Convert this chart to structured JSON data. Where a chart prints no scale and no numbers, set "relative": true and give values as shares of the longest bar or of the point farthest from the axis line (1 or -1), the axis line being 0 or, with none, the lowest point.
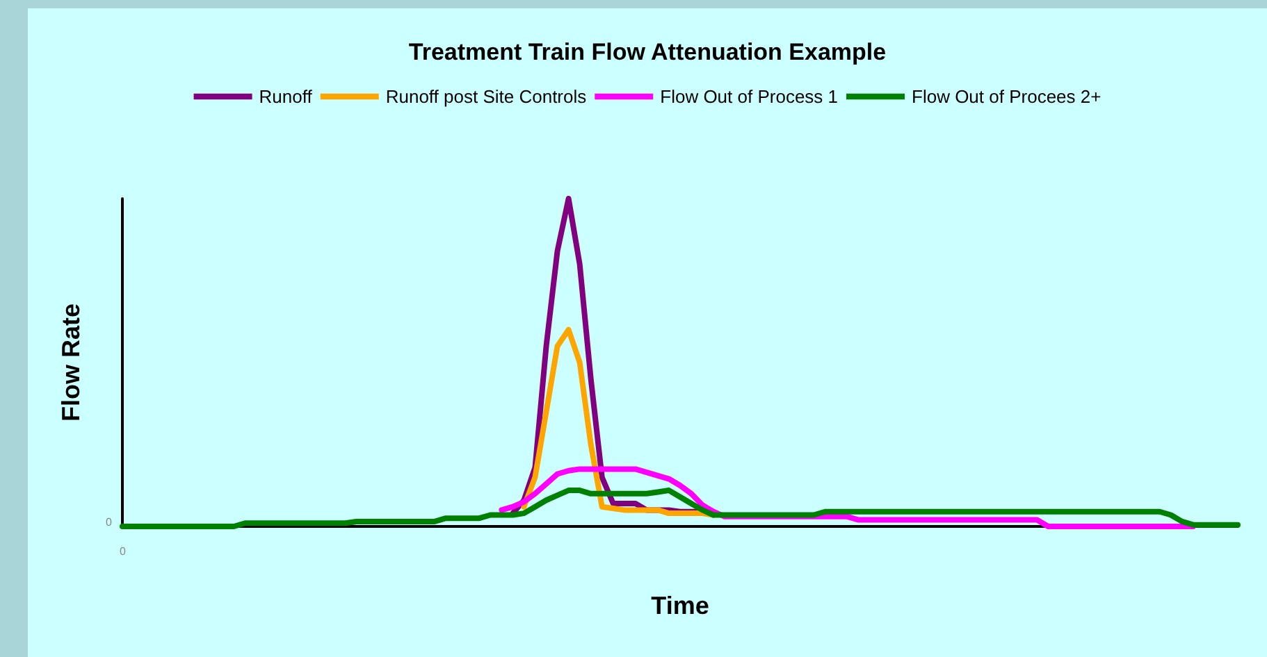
{
  "chart_data": {
    "type": "line",
    "title": "Treatment Train Flow Attenuation Example",
    "xlabel": "Time",
    "ylabel": "Flow Rate",
    "relative": true,
    "legend": "top",
    "grid": false,
    "marker": "none",
    "line_style": "solid",
    "annotations": [
      "0",
      "0"
    ],
    "categories": [
      null,
      null,
      null,
      null,
      null,
      null,
      null,
      null,
      null,
      null,
      null,
      null,
      null,
      null,
      null,
      null,
      null,
      null,
      null,
      null,
      null,
      null,
      null,
      null,
      null,
      null,
      null,
      null,
      null,
      null,
      null,
      null,
      null,
      null,
      null,
      null,
      null,
      null,
      null,
      null,
      null,
      null,
      null,
      null,
      null,
      null,
      null,
      null,
      null,
      null,
      null,
      null,
      null,
      null,
      null,
      null,
      null,
      null,
      null,
      null,
      null,
      null,
      null,
      null,
      null,
      null,
      null,
      null,
      null,
      null,
      null,
      null,
      null,
      null,
      null,
      null,
      null,
      null,
      null,
      null,
      null,
      null,
      null,
      null,
      null,
      null,
      null,
      null,
      null,
      null,
      null,
      null,
      null,
      null,
      null,
      null,
      null,
      null,
      null,
      null,
      null
    ],
    "series": [
      {
        "name": "Runoff",
        "color": "#800080",
        "values": [
          null,
          null,
          null,
          null,
          null,
          null,
          null,
          null,
          null,
          null,
          null,
          null,
          null,
          null,
          null,
          null,
          null,
          null,
          null,
          null,
          null,
          null,
          null,
          null,
          null,
          null,
          null,
          null,
          null,
          null,
          null,
          null,
          null,
          null,
          null,
          0.04,
          0.08,
          0.18,
          0.55,
          0.84,
          1,
          0.8,
          0.45,
          0.15,
          0.07,
          0.07,
          0.07,
          0.05,
          0.05,
          0.05,
          0.045,
          0.045,
          0.045,
          0.035,
          null,
          null,
          null,
          null,
          null,
          null,
          null,
          null,
          null,
          null,
          null,
          null,
          null,
          null,
          null,
          null,
          null,
          null,
          null,
          null,
          null,
          null,
          null,
          null,
          null,
          null,
          null,
          null,
          null,
          null,
          null,
          null,
          null,
          null,
          null,
          null,
          null,
          null,
          null,
          null,
          null,
          null,
          null,
          null,
          null,
          null,
          null
        ]
      },
      {
        "name": "Runoff post Site Controls",
        "color": "#ffa500",
        "values": [
          null,
          null,
          null,
          null,
          null,
          null,
          null,
          null,
          null,
          null,
          null,
          null,
          null,
          null,
          null,
          null,
          null,
          null,
          null,
          null,
          null,
          null,
          null,
          null,
          null,
          null,
          null,
          null,
          null,
          null,
          null,
          null,
          null,
          null,
          null,
          null,
          0.06,
          0.15,
          0.35,
          0.55,
          0.6,
          0.5,
          0.25,
          0.06,
          0.055,
          0.05,
          0.05,
          0.05,
          0.05,
          0.04,
          0.04,
          0.04,
          0.04,
          0.035,
          null,
          null,
          null,
          null,
          null,
          null,
          null,
          null,
          null,
          null,
          null,
          null,
          null,
          null,
          null,
          null,
          null,
          null,
          null,
          null,
          null,
          null,
          null,
          null,
          null,
          null,
          null,
          null,
          null,
          null,
          null,
          null,
          null,
          null,
          null,
          null,
          null,
          null,
          null,
          null,
          null,
          null,
          null,
          null,
          null,
          null,
          null
        ]
      },
      {
        "name": "Flow Out of Process 1",
        "color": "#ff00ff",
        "values": [
          null,
          null,
          null,
          null,
          null,
          null,
          null,
          null,
          null,
          null,
          null,
          null,
          null,
          null,
          null,
          null,
          null,
          null,
          null,
          null,
          null,
          null,
          null,
          null,
          null,
          null,
          null,
          null,
          null,
          null,
          null,
          null,
          null,
          null,
          0.05,
          0.06,
          0.075,
          0.1,
          0.13,
          0.16,
          0.17,
          0.175,
          0.175,
          0.175,
          0.175,
          0.175,
          0.175,
          0.165,
          0.155,
          0.145,
          0.125,
          0.1,
          0.065,
          0.045,
          0.03,
          0.03,
          0.03,
          0.03,
          0.03,
          0.03,
          0.03,
          0.03,
          0.03,
          0.03,
          0.03,
          0.03,
          0.02,
          0.02,
          0.02,
          0.02,
          0.02,
          0.02,
          0.02,
          0.02,
          0.02,
          0.02,
          0.02,
          0.02,
          0.02,
          0.02,
          0.02,
          0.02,
          0.02,
          0,
          0,
          0,
          0,
          0,
          0,
          0,
          0,
          0,
          0,
          0,
          0,
          0,
          0,
          null,
          null,
          null,
          null
        ]
      },
      {
        "name": "Flow Out of Procees 2+",
        "color": "#008000",
        "values": [
          0,
          0,
          0,
          0,
          0,
          0,
          0,
          0,
          0,
          0,
          0,
          0.01,
          0.01,
          0.01,
          0.01,
          0.01,
          0.01,
          0.01,
          0.01,
          0.01,
          0.01,
          0.015,
          0.015,
          0.015,
          0.015,
          0.015,
          0.015,
          0.015,
          0.015,
          0.025,
          0.025,
          0.025,
          0.025,
          0.035,
          0.035,
          0.035,
          0.04,
          0.06,
          0.08,
          0.095,
          0.11,
          0.11,
          0.1,
          0.1,
          0.1,
          0.1,
          0.1,
          0.1,
          0.105,
          0.11,
          0.09,
          0.07,
          0.05,
          0.035,
          0.035,
          0.035,
          0.035,
          0.035,
          0.035,
          0.035,
          0.035,
          0.035,
          0.035,
          0.045,
          0.045,
          0.045,
          0.045,
          0.045,
          0.045,
          0.045,
          0.045,
          0.045,
          0.045,
          0.045,
          0.045,
          0.045,
          0.045,
          0.045,
          0.045,
          0.045,
          0.045,
          0.045,
          0.045,
          0.045,
          0.045,
          0.045,
          0.045,
          0.045,
          0.045,
          0.045,
          0.045,
          0.045,
          0.045,
          0.045,
          0.035,
          0.015,
          0.005,
          0.005,
          0.005,
          0.005,
          0.005
        ]
      }
    ]
  }
}
